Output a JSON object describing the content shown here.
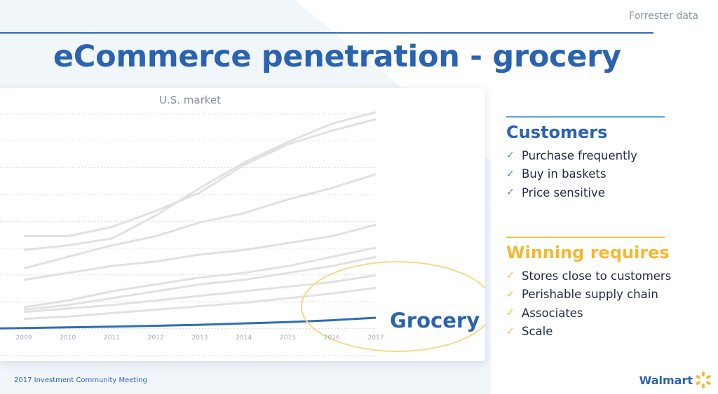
{
  "header": {
    "source_label": "Forrester data",
    "title": "eCommerce penetration - grocery"
  },
  "chart_data": {
    "type": "line",
    "subtitle": "U.S. market",
    "x": [
      "2009",
      "2010",
      "2011",
      "2012",
      "2013",
      "2014",
      "2015",
      "2016",
      "2017"
    ],
    "ylim": [
      0,
      10
    ],
    "grid": true,
    "highlight_label": "Grocery",
    "series": [
      {
        "name": "Grocery",
        "highlight": true,
        "values": [
          0.1,
          0.13,
          0.16,
          0.2,
          0.24,
          0.3,
          0.36,
          0.44,
          0.55
        ]
      },
      {
        "highlight": false,
        "values": [
          3.5,
          3.7,
          4.0,
          5.0,
          6.2,
          7.3,
          8.2,
          9.0,
          9.5
        ]
      },
      {
        "highlight": false,
        "values": [
          4.1,
          4.1,
          4.5,
          5.2,
          6.0,
          7.2,
          8.1,
          8.7,
          9.2
        ]
      },
      {
        "highlight": false,
        "values": [
          2.7,
          3.2,
          3.7,
          4.1,
          4.7,
          5.1,
          5.7,
          6.2,
          6.8
        ]
      },
      {
        "highlight": false,
        "values": [
          2.2,
          2.5,
          2.8,
          3.0,
          3.3,
          3.5,
          3.8,
          4.1,
          4.6
        ]
      },
      {
        "highlight": false,
        "values": [
          1.0,
          1.3,
          1.7,
          2.0,
          2.3,
          2.5,
          2.8,
          3.2,
          3.6
        ]
      },
      {
        "highlight": false,
        "values": [
          0.9,
          1.1,
          1.4,
          1.7,
          2.0,
          2.2,
          2.5,
          2.8,
          3.2
        ]
      },
      {
        "highlight": false,
        "values": [
          0.8,
          0.95,
          1.1,
          1.3,
          1.5,
          1.7,
          1.9,
          2.1,
          2.4
        ]
      },
      {
        "highlight": false,
        "values": [
          0.5,
          0.6,
          0.75,
          0.9,
          1.05,
          1.2,
          1.4,
          1.6,
          1.85
        ]
      }
    ]
  },
  "customers": {
    "heading": "Customers",
    "items": [
      "Purchase frequently",
      "Buy in baskets",
      "Price sensitive"
    ]
  },
  "winning": {
    "heading": "Winning requires",
    "items": [
      "Stores close to customers",
      "Perishable supply chain",
      "Associates",
      "Scale"
    ]
  },
  "footer": {
    "event": "2017 Investment Community Meeting",
    "brand": "Walmart"
  },
  "icons": {
    "check": "checkmark-icon",
    "brand_mark": "spark-icon"
  },
  "colors": {
    "title_blue": "#2a63b0",
    "accent_yellow": "#f5b82e",
    "light_blue_rule": "#5ca4e0",
    "grocery_line": "#2f6db5",
    "other_lines": "#e1e1e1",
    "highlight_ellipse": "#f7d98c"
  }
}
